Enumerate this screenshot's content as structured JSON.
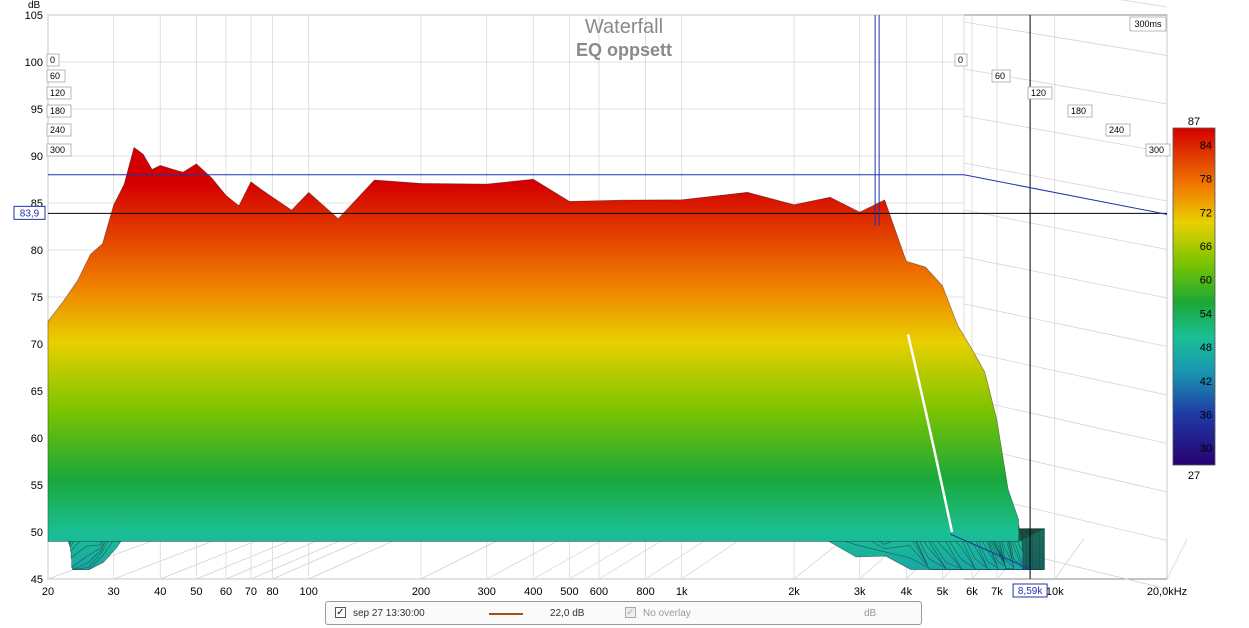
{
  "chart_data": {
    "type": "waterfall",
    "title": "Waterfall",
    "subtitle": "EQ oppsett",
    "time_window_label": "300ms",
    "y_unit_label": "dB",
    "yticks": [
      "45",
      "50",
      "55",
      "60",
      "65",
      "70",
      "75",
      "80",
      "85",
      "90",
      "95",
      "100",
      "105"
    ],
    "ylim": [
      45,
      105
    ],
    "xaxis": {
      "scale": "log",
      "range_hz": [
        20,
        20000
      ]
    },
    "xticks": [
      {
        "hz": 20,
        "label": "20"
      },
      {
        "hz": 30,
        "label": "30"
      },
      {
        "hz": 40,
        "label": "40"
      },
      {
        "hz": 50,
        "label": "50"
      },
      {
        "hz": 60,
        "label": "60"
      },
      {
        "hz": 70,
        "label": "70"
      },
      {
        "hz": 80,
        "label": "80"
      },
      {
        "hz": 100,
        "label": "100"
      },
      {
        "hz": 200,
        "label": "200"
      },
      {
        "hz": 300,
        "label": "300"
      },
      {
        "hz": 400,
        "label": "400"
      },
      {
        "hz": 500,
        "label": "500"
      },
      {
        "hz": 600,
        "label": "600"
      },
      {
        "hz": 800,
        "label": "800"
      },
      {
        "hz": 1000,
        "label": "1k"
      },
      {
        "hz": 2000,
        "label": "2k"
      },
      {
        "hz": 3000,
        "label": "3k"
      },
      {
        "hz": 4000,
        "label": "4k"
      },
      {
        "hz": 5000,
        "label": "5k"
      },
      {
        "hz": 6000,
        "label": "6k"
      },
      {
        "hz": 7000,
        "label": "7k"
      },
      {
        "hz": 10000,
        "label": "10k"
      },
      {
        "hz": 20000,
        "label": "20,0kHz"
      }
    ],
    "time_ticks_left": [
      "0",
      "60",
      "120",
      "180",
      "240",
      "300"
    ],
    "time_ticks_right": [
      "0",
      "60",
      "120",
      "180",
      "240",
      "300"
    ],
    "cursor": {
      "hz_label": "8,59k",
      "db_label": "83,9"
    },
    "colorbar": {
      "max_label": "87",
      "min_label": "27",
      "tick_labels": [
        "84",
        "78",
        "72",
        "66",
        "60",
        "54",
        "48",
        "42",
        "36",
        "30"
      ],
      "range": [
        27,
        87
      ]
    },
    "front_slice_db": [
      {
        "hz": 20,
        "db": 73
      },
      {
        "hz": 22,
        "db": 75.5
      },
      {
        "hz": 24,
        "db": 76
      },
      {
        "hz": 26,
        "db": 78.5
      },
      {
        "hz": 28,
        "db": 81
      },
      {
        "hz": 30,
        "db": 86
      },
      {
        "hz": 32,
        "db": 87.5
      },
      {
        "hz": 34,
        "db": 90.2
      },
      {
        "hz": 36,
        "db": 89
      },
      {
        "hz": 38,
        "db": 88
      },
      {
        "hz": 40,
        "db": 89.5
      },
      {
        "hz": 43,
        "db": 89.8
      },
      {
        "hz": 46,
        "db": 88.5
      },
      {
        "hz": 50,
        "db": 88
      },
      {
        "hz": 55,
        "db": 87.5
      },
      {
        "hz": 60,
        "db": 87
      },
      {
        "hz": 65,
        "db": 85
      },
      {
        "hz": 70,
        "db": 86.2
      },
      {
        "hz": 75,
        "db": 85.5
      },
      {
        "hz": 80,
        "db": 86
      },
      {
        "hz": 90,
        "db": 85
      },
      {
        "hz": 100,
        "db": 85
      },
      {
        "hz": 120,
        "db": 84.5
      },
      {
        "hz": 150,
        "db": 86.5
      },
      {
        "hz": 200,
        "db": 86
      },
      {
        "hz": 300,
        "db": 86
      },
      {
        "hz": 400,
        "db": 86.5
      },
      {
        "hz": 500,
        "db": 86.3
      },
      {
        "hz": 700,
        "db": 86.5
      },
      {
        "hz": 1000,
        "db": 86.5
      },
      {
        "hz": 1500,
        "db": 86.5
      },
      {
        "hz": 2000,
        "db": 86
      },
      {
        "hz": 2500,
        "db": 85
      },
      {
        "hz": 3000,
        "db": 84.5
      },
      {
        "hz": 3500,
        "db": 84.5
      },
      {
        "hz": 4000,
        "db": 80
      },
      {
        "hz": 4500,
        "db": 77.5
      },
      {
        "hz": 5000,
        "db": 75.5
      },
      {
        "hz": 5500,
        "db": 73
      },
      {
        "hz": 6000,
        "db": 70
      },
      {
        "hz": 6500,
        "db": 66
      },
      {
        "hz": 7000,
        "db": 61
      },
      {
        "hz": 7500,
        "db": 55
      },
      {
        "hz": 8000,
        "db": 52.5
      }
    ],
    "legend": {
      "measurement_label": "sep 27 13:30:00",
      "measurement_checked": true,
      "line_color": "#a0521d",
      "value_label": "22,0 dB",
      "overlay_label": "No overlay",
      "overlay_checked": true,
      "unit_label": "dB"
    }
  }
}
